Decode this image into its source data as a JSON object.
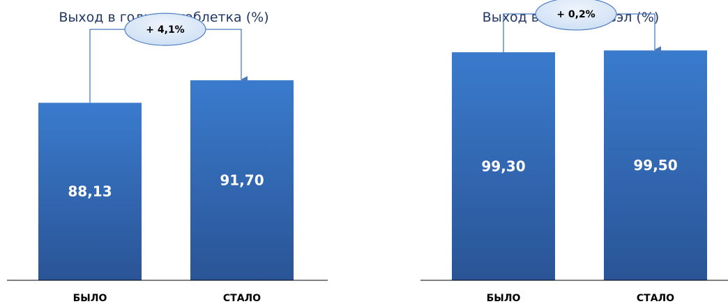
{
  "colors": {
    "bar_top": "#3a7bcd",
    "bar_bottom": "#2a5496",
    "bubble_fill": "#cfe0f5",
    "bubble_stroke": "#4f7fc4",
    "connector": "#4a78bd"
  },
  "chart_data": [
    {
      "type": "bar",
      "title": "Выход в годное, таблетка (%)",
      "categories": [
        "БЫЛО",
        "СТАЛО"
      ],
      "values": [
        88.13,
        91.7
      ],
      "data_labels": [
        "88,13",
        "91,70"
      ],
      "delta_label": "+ 4,1%",
      "ylim": [
        60,
        100
      ],
      "grid": false
    },
    {
      "type": "bar",
      "title": "Выход в годное, твэл (%)",
      "categories": [
        "БЫЛО",
        "СТАЛО"
      ],
      "values": [
        99.3,
        99.5
      ],
      "data_labels": [
        "99,30",
        "99,50"
      ],
      "delta_label": "+ 0,2%",
      "ylim": [
        74,
        102
      ],
      "grid": false
    }
  ]
}
